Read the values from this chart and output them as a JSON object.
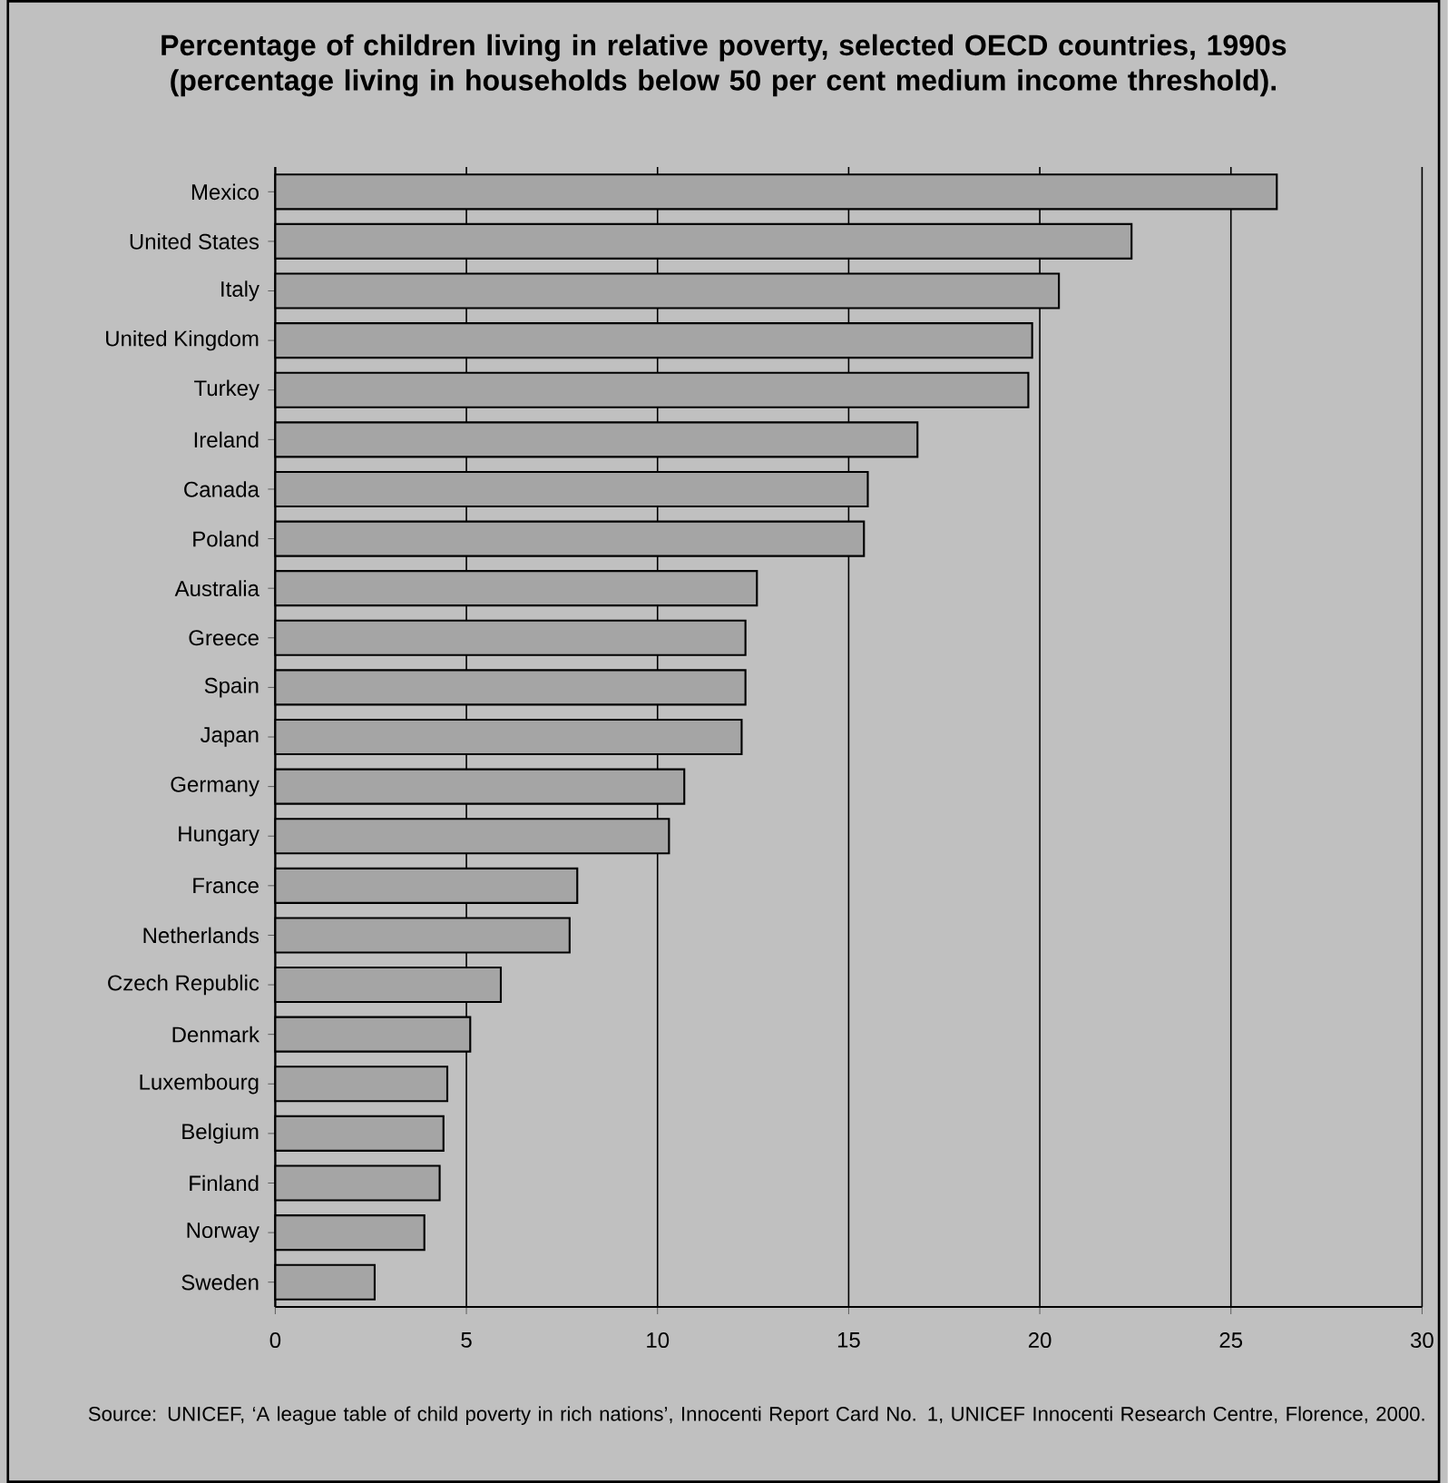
{
  "chart_data": {
    "type": "bar",
    "orientation": "horizontal",
    "title": "Percentage of children living in relative poverty, selected OECD countries, 1990s (percentage living in households below 50 per cent medium income threshold).",
    "categories": [
      "Mexico",
      "United States",
      "Italy",
      "United Kingdom",
      "Turkey",
      "Ireland",
      "Canada",
      "Poland",
      "Australia",
      "Greece",
      "Spain",
      "Japan",
      "Germany",
      "Hungary",
      "France",
      "Netherlands",
      "Czech Republic",
      "Denmark",
      "Luxembourg",
      "Belgium",
      "Finland",
      "Norway",
      "Sweden"
    ],
    "values": [
      26.2,
      22.4,
      20.5,
      19.8,
      19.7,
      16.8,
      15.5,
      15.4,
      12.6,
      12.3,
      12.3,
      12.2,
      10.7,
      10.3,
      7.9,
      7.7,
      5.9,
      5.1,
      4.5,
      4.4,
      4.3,
      3.9,
      2.6
    ],
    "color": "#a5a5a5",
    "xlim": [
      0,
      30
    ],
    "xticks": [
      0,
      5,
      10,
      15,
      20,
      25,
      30
    ],
    "grid": "x",
    "annotations": [
      "Source: UNICEF, ‘A league table of child poverty in rich nations’, Innocenti Report Card No. 1, UNICEF Innocenti Research Centre, Florence, 2000."
    ]
  }
}
